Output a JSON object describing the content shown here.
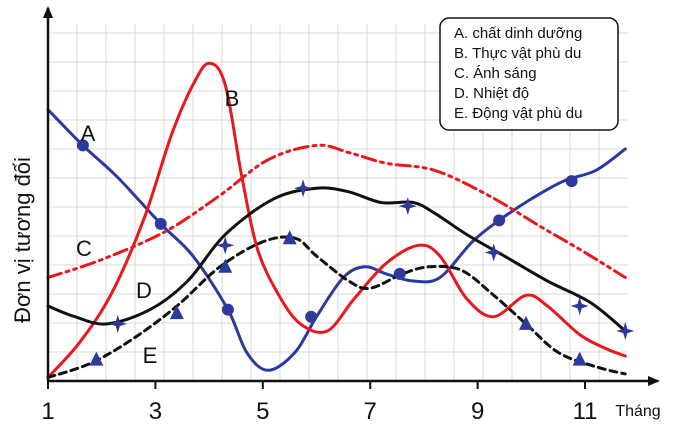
{
  "chart_data": {
    "type": "line",
    "title": "",
    "xlabel": "Tháng",
    "ylabel": "Đơn vị tương đối",
    "xlim": [
      1,
      11.8
    ],
    "ylim": [
      0,
      10
    ],
    "grid": true,
    "legend_position": "top-right",
    "x_ticks": [
      1,
      3,
      5,
      7,
      9,
      11
    ],
    "x_tick_labels": [
      "1",
      "3",
      "5",
      7,
      "9",
      "11"
    ],
    "legend": [
      "A. chất dinh dưỡng",
      "B. Thực vật phù du",
      "C. Ánh sáng",
      "D. Nhiệt độ",
      "E. Động vật phù du"
    ],
    "series": [
      {
        "name": "A",
        "color": "#2b3a9c",
        "style": "solid",
        "marker": "circle",
        "points": [
          [
            1,
            7.6
          ],
          [
            1.65,
            6.6
          ],
          [
            2.3,
            5.7
          ],
          [
            3.1,
            4.4
          ],
          [
            3.7,
            3.5
          ],
          [
            4.35,
            2.0
          ],
          [
            4.7,
            0.8
          ],
          [
            5.1,
            0.3
          ],
          [
            5.6,
            0.8
          ],
          [
            6.0,
            1.8
          ],
          [
            6.5,
            2.9
          ],
          [
            6.9,
            3.2
          ],
          [
            7.3,
            3.0
          ],
          [
            7.8,
            2.8
          ],
          [
            8.3,
            2.9
          ],
          [
            8.9,
            3.9
          ],
          [
            9.4,
            4.5
          ],
          [
            10.0,
            5.1
          ],
          [
            10.6,
            5.6
          ],
          [
            11.2,
            5.9
          ],
          [
            11.75,
            6.5
          ]
        ],
        "marker_points": [
          [
            1.65,
            6.6
          ],
          [
            3.1,
            4.4
          ],
          [
            4.35,
            2.0
          ],
          [
            5.9,
            1.8
          ],
          [
            7.55,
            3.0
          ],
          [
            9.4,
            4.5
          ],
          [
            10.75,
            5.6
          ]
        ]
      },
      {
        "name": "B",
        "color": "#e8181e",
        "style": "solid",
        "marker": "none",
        "points": [
          [
            1,
            0.1
          ],
          [
            1.6,
            1.1
          ],
          [
            2.2,
            2.5
          ],
          [
            2.8,
            4.6
          ],
          [
            3.3,
            6.9
          ],
          [
            3.7,
            8.3
          ],
          [
            4.0,
            8.9
          ],
          [
            4.3,
            8.3
          ],
          [
            4.6,
            5.8
          ],
          [
            4.9,
            3.7
          ],
          [
            5.3,
            2.4
          ],
          [
            5.7,
            1.6
          ],
          [
            6.2,
            1.4
          ],
          [
            6.7,
            2.3
          ],
          [
            7.3,
            3.3
          ],
          [
            7.9,
            3.8
          ],
          [
            8.3,
            3.5
          ],
          [
            8.8,
            2.3
          ],
          [
            9.3,
            1.8
          ],
          [
            9.9,
            2.4
          ],
          [
            10.3,
            2.1
          ],
          [
            10.9,
            1.3
          ],
          [
            11.4,
            0.9
          ],
          [
            11.75,
            0.7
          ]
        ]
      },
      {
        "name": "C",
        "color": "#e8181e",
        "style": "dashdot",
        "marker": "none",
        "points": [
          [
            1,
            2.9
          ],
          [
            2.0,
            3.4
          ],
          [
            3.2,
            4.2
          ],
          [
            4.2,
            5.2
          ],
          [
            5.1,
            6.2
          ],
          [
            6.0,
            6.6
          ],
          [
            6.6,
            6.4
          ],
          [
            7.3,
            6.1
          ],
          [
            8.2,
            5.9
          ],
          [
            9.2,
            5.2
          ],
          [
            10.2,
            4.3
          ],
          [
            11.0,
            3.6
          ],
          [
            11.75,
            2.9
          ]
        ]
      },
      {
        "name": "D",
        "color": "#111111",
        "style": "solid",
        "marker": "star",
        "points": [
          [
            1,
            2.1
          ],
          [
            1.5,
            1.8
          ],
          [
            2.1,
            1.6
          ],
          [
            2.9,
            2.0
          ],
          [
            3.6,
            2.8
          ],
          [
            4.3,
            4.1
          ],
          [
            5.2,
            5.1
          ],
          [
            6.0,
            5.4
          ],
          [
            6.6,
            5.3
          ],
          [
            7.2,
            5.0
          ],
          [
            7.8,
            5.0
          ],
          [
            8.2,
            4.7
          ],
          [
            8.8,
            4.1
          ],
          [
            9.5,
            3.5
          ],
          [
            10.3,
            2.8
          ],
          [
            11.1,
            2.2
          ],
          [
            11.75,
            1.4
          ]
        ],
        "marker_points": [
          [
            2.3,
            1.6
          ],
          [
            4.3,
            3.8
          ],
          [
            5.75,
            5.4
          ],
          [
            7.7,
            4.9
          ],
          [
            9.3,
            3.6
          ],
          [
            10.9,
            2.1
          ],
          [
            11.75,
            1.4
          ]
        ]
      },
      {
        "name": "E",
        "color": "#111111",
        "style": "dashed",
        "marker": "triangle",
        "points": [
          [
            1,
            0.1
          ],
          [
            1.8,
            0.5
          ],
          [
            2.6,
            1.2
          ],
          [
            3.4,
            2.1
          ],
          [
            4.2,
            3.2
          ],
          [
            5.0,
            3.9
          ],
          [
            5.6,
            4.0
          ],
          [
            6.0,
            3.5
          ],
          [
            6.6,
            2.8
          ],
          [
            7.0,
            2.6
          ],
          [
            7.6,
            3.0
          ],
          [
            8.1,
            3.2
          ],
          [
            8.7,
            3.1
          ],
          [
            9.3,
            2.4
          ],
          [
            9.9,
            1.6
          ],
          [
            10.5,
            0.8
          ],
          [
            11.2,
            0.4
          ],
          [
            11.75,
            0.2
          ]
        ],
        "marker_points": [
          [
            1.9,
            0.6
          ],
          [
            3.4,
            1.9
          ],
          [
            4.3,
            3.2
          ],
          [
            5.5,
            4.0
          ],
          [
            9.9,
            1.6
          ],
          [
            10.9,
            0.6
          ]
        ]
      }
    ]
  }
}
